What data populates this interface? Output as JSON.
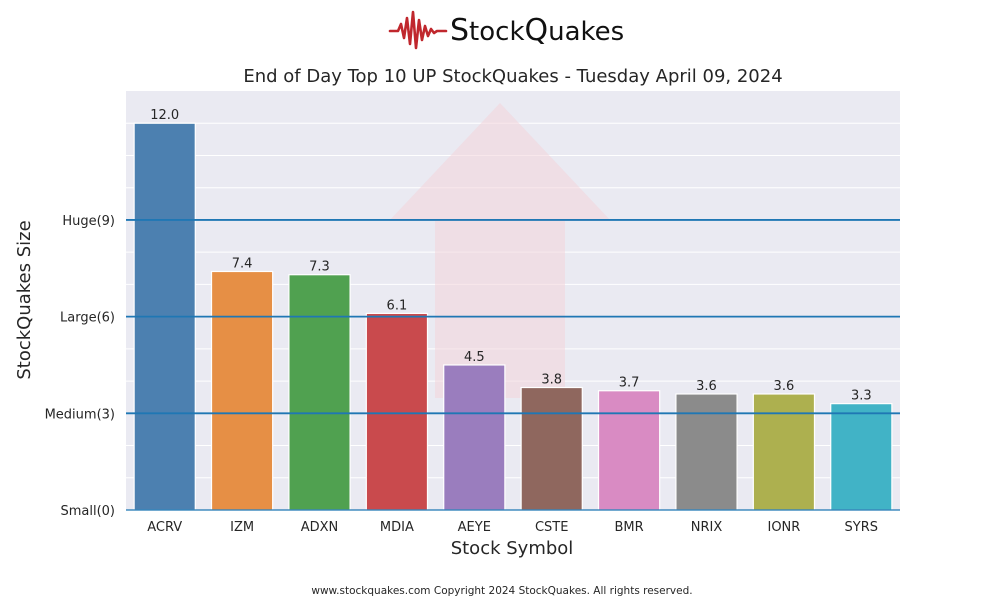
{
  "logo": {
    "name": "StockQuakes",
    "first_letter": "S",
    "part1": "tock",
    "second_letter": "Q",
    "part2": "uakes",
    "color": "#c0272d"
  },
  "title": "End of Day Top 10 UP StockQuakes - Tuesday April 09, 2024",
  "footer": "www.stockquakes.com Copyright 2024 StockQuakes. All rights reserved.",
  "chart_data": {
    "type": "bar",
    "title": "End of Day Top 10 UP StockQuakes - Tuesday April 09, 2024",
    "xlabel": "Stock Symbol",
    "ylabel": "StockQuakes Size",
    "categories": [
      "ACRV",
      "IZM",
      "ADXN",
      "MDIA",
      "AEYE",
      "CSTE",
      "BMR",
      "NRIX",
      "IONR",
      "SYRS"
    ],
    "values": [
      12.0,
      7.4,
      7.3,
      6.1,
      4.5,
      3.8,
      3.7,
      3.6,
      3.6,
      3.3
    ],
    "value_labels": [
      "12.0",
      "7.4",
      "7.3",
      "6.1",
      "4.5",
      "3.8",
      "3.7",
      "3.6",
      "3.6",
      "3.3"
    ],
    "colors": [
      "#4c80b0",
      "#e68f45",
      "#50a150",
      "#c94a4d",
      "#9a7dbe",
      "#8f675e",
      "#d98bc3",
      "#8b8b8b",
      "#adb04f",
      "#41b3c6"
    ],
    "ylim": [
      0,
      13
    ],
    "yticks": [
      {
        "value": 0,
        "label": "Small(0)"
      },
      {
        "value": 3,
        "label": "Medium(3)"
      },
      {
        "value": 6,
        "label": "Large(6)"
      },
      {
        "value": 9,
        "label": "Huge(9)"
      }
    ],
    "reference_lines": [
      3,
      6,
      9
    ],
    "reference_line_color": "#1f77b4",
    "background_color": "#eaeaf2",
    "grid": true,
    "watermark": "up-arrow"
  }
}
